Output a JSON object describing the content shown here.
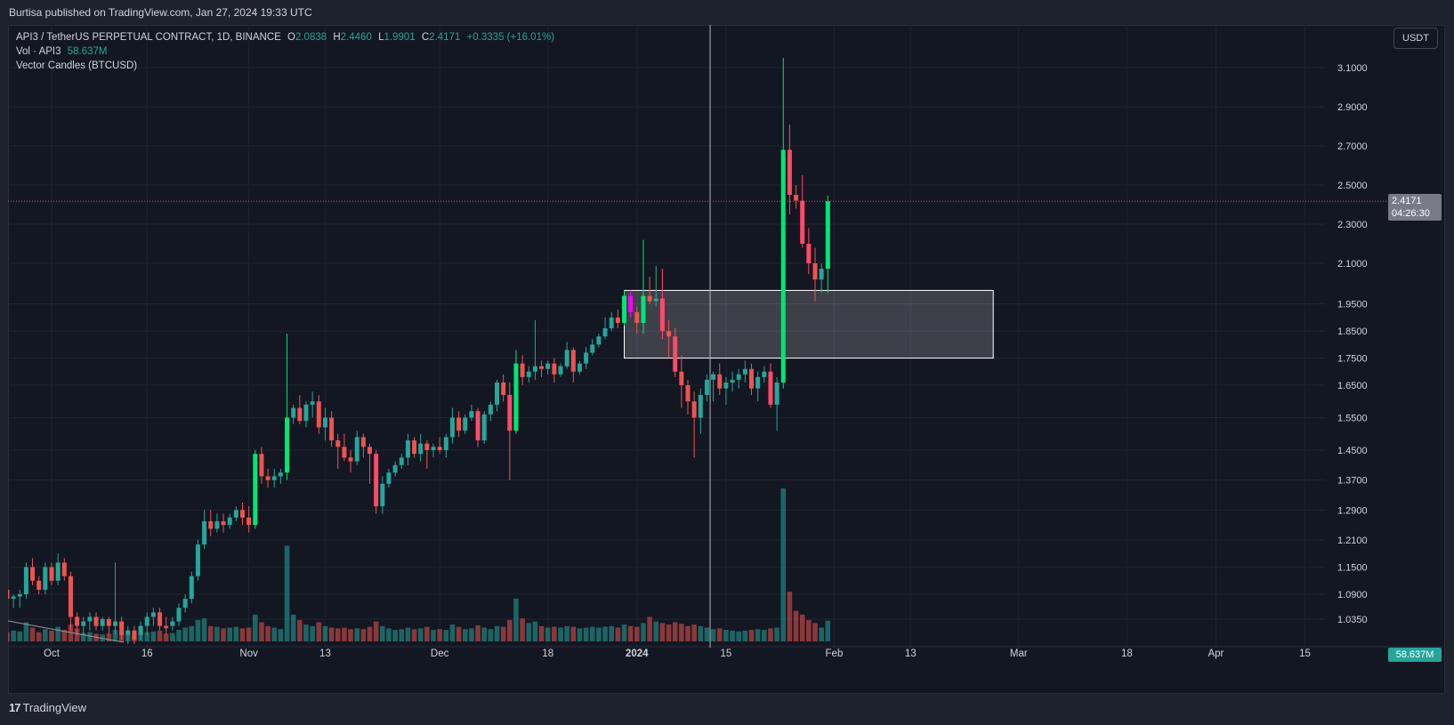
{
  "header": {
    "published": "Burtisa published on TradingView.com, Jan 27, 2024 19:33 UTC"
  },
  "legend": {
    "symbol": "API3 / TetherUS PERPETUAL CONTRACT, 1D, BINANCE",
    "o_label": "O",
    "o": "2.0838",
    "h_label": "H",
    "h": "2.4460",
    "l_label": "L",
    "l": "1.9901",
    "c_label": "C",
    "c": "2.4171",
    "change": "+0.3335 (+16.01%)",
    "vol_label": "Vol · API3",
    "vol": "58.637M",
    "indicator": "Vector Candles (BTCUSD)"
  },
  "currency_button": "USDT",
  "price_tag": {
    "price": "2.4171",
    "countdown": "04:26:30"
  },
  "volume_tag": "58.637M",
  "footer": {
    "brand": "TradingView",
    "logo_icon": "tradingview-logo-icon"
  },
  "chart_data": {
    "type": "candlestick",
    "title": "",
    "colors": {
      "up": "#26a69a",
      "down": "#ef5350",
      "vector_up": "#00e676",
      "vector_down": "#ff4a68",
      "vector_magenta": "#ff00ff",
      "background": "#131722"
    },
    "y_ticks": [
      "3.1000",
      "2.9000",
      "2.7000",
      "2.5000",
      "2.3000",
      "2.1000",
      "1.9500",
      "1.8500",
      "1.7500",
      "1.6500",
      "1.5500",
      "1.4500",
      "1.3700",
      "1.2900",
      "1.2100",
      "1.1500",
      "1.0900",
      "1.0350"
    ],
    "x_ticks": [
      {
        "label": "Oct",
        "day": 0
      },
      {
        "label": "16",
        "day": 15
      },
      {
        "label": "Nov",
        "day": 31
      },
      {
        "label": "13",
        "day": 43
      },
      {
        "label": "Dec",
        "day": 61
      },
      {
        "label": "18",
        "day": 78
      },
      {
        "label": "2024",
        "day": 92
      },
      {
        "label": "15",
        "day": 106
      },
      {
        "label": "Feb",
        "day": 123
      },
      {
        "label": "13",
        "day": 135
      },
      {
        "label": "Mar",
        "day": 152
      },
      {
        "label": "18",
        "day": 169
      },
      {
        "label": "Apr",
        "day": 183
      },
      {
        "label": "15",
        "day": 197
      }
    ],
    "highlight_zone": {
      "x_start_day": 90,
      "x_end_day": 148,
      "y_low": 1.75,
      "y_high": 2.0
    },
    "vertical_marker_day": 103.5,
    "current_price": 2.4171,
    "candles_start_day": -7,
    "candles": [
      [
        1.1,
        1.11,
        1.07,
        1.08,
        1.2
      ],
      [
        1.08,
        1.09,
        1.06,
        1.085,
        1.4
      ],
      [
        1.085,
        1.1,
        1.06,
        1.09,
        1.3
      ],
      [
        1.09,
        1.16,
        1.08,
        1.15,
        2.5
      ],
      [
        1.15,
        1.17,
        1.11,
        1.12,
        1.8
      ],
      [
        1.12,
        1.13,
        1.09,
        1.1,
        1.2
      ],
      [
        1.1,
        1.16,
        1.09,
        1.15,
        1.6
      ],
      [
        1.15,
        1.16,
        1.11,
        1.12,
        1.4
      ],
      [
        1.12,
        1.18,
        1.11,
        1.16,
        1.9
      ],
      [
        1.16,
        1.17,
        1.12,
        1.13,
        1.5
      ],
      [
        1.13,
        1.14,
        1.01,
        1.04,
        2.2
      ],
      [
        1.04,
        1.05,
        1.0,
        1.02,
        1.7
      ],
      [
        1.02,
        1.04,
        1.0,
        1.03,
        1.1
      ],
      [
        1.03,
        1.05,
        1.01,
        1.04,
        1.2
      ],
      [
        1.04,
        1.05,
        1.01,
        1.02,
        1.0
      ],
      [
        1.02,
        1.04,
        1.01,
        1.035,
        0.9
      ],
      [
        1.035,
        1.04,
        1.0,
        1.02,
        1.0
      ],
      [
        1.02,
        1.16,
        1.0,
        1.03,
        1.5
      ],
      [
        1.03,
        1.04,
        0.99,
        1.0,
        1.1
      ],
      [
        1.0,
        1.02,
        0.98,
        1.01,
        0.9
      ],
      [
        1.01,
        1.02,
        0.98,
        0.99,
        1.0
      ],
      [
        1.0,
        1.03,
        0.99,
        1.02,
        1.1
      ],
      [
        1.02,
        1.05,
        1.0,
        1.04,
        1.2
      ],
      [
        1.04,
        1.06,
        1.02,
        1.05,
        1.3
      ],
      [
        1.05,
        1.06,
        1.01,
        1.02,
        1.4
      ],
      [
        1.02,
        1.04,
        1.0,
        1.015,
        1.0
      ],
      [
        1.02,
        1.04,
        1.01,
        1.03,
        1.1
      ],
      [
        1.03,
        1.07,
        1.02,
        1.06,
        1.5
      ],
      [
        1.06,
        1.09,
        1.05,
        1.08,
        1.8
      ],
      [
        1.08,
        1.14,
        1.07,
        1.13,
        2.0
      ],
      [
        1.13,
        1.21,
        1.12,
        1.2,
        2.8
      ],
      [
        1.2,
        1.29,
        1.19,
        1.26,
        3.0
      ],
      [
        1.26,
        1.29,
        1.22,
        1.24,
        2.0
      ],
      [
        1.24,
        1.28,
        1.23,
        1.26,
        1.9
      ],
      [
        1.26,
        1.28,
        1.23,
        1.25,
        1.7
      ],
      [
        1.25,
        1.28,
        1.24,
        1.27,
        1.8
      ],
      [
        1.27,
        1.3,
        1.26,
        1.29,
        1.9
      ],
      [
        1.29,
        1.31,
        1.25,
        1.27,
        1.7
      ],
      [
        1.27,
        1.3,
        1.23,
        1.25,
        1.8
      ],
      [
        1.25,
        1.45,
        1.24,
        1.44,
        3.5
      ],
      [
        1.44,
        1.46,
        1.36,
        1.38,
        2.5
      ],
      [
        1.38,
        1.4,
        1.35,
        1.37,
        2.0
      ],
      [
        1.37,
        1.4,
        1.35,
        1.38,
        1.8
      ],
      [
        1.38,
        1.4,
        1.36,
        1.39,
        1.6
      ],
      [
        1.39,
        1.84,
        1.37,
        1.55,
        12.5
      ],
      [
        1.55,
        1.59,
        1.53,
        1.58,
        3.5
      ],
      [
        1.58,
        1.62,
        1.53,
        1.54,
        2.8
      ],
      [
        1.54,
        1.6,
        1.52,
        1.59,
        2.2
      ],
      [
        1.59,
        1.63,
        1.55,
        1.6,
        2.0
      ],
      [
        1.6,
        1.62,
        1.5,
        1.52,
        2.5
      ],
      [
        1.52,
        1.58,
        1.48,
        1.55,
        2.0
      ],
      [
        1.55,
        1.57,
        1.46,
        1.48,
        1.8
      ],
      [
        1.48,
        1.5,
        1.4,
        1.46,
        1.7
      ],
      [
        1.46,
        1.5,
        1.42,
        1.43,
        1.8
      ],
      [
        1.43,
        1.45,
        1.39,
        1.42,
        1.6
      ],
      [
        1.42,
        1.51,
        1.41,
        1.49,
        1.7
      ],
      [
        1.49,
        1.5,
        1.43,
        1.46,
        1.6
      ],
      [
        1.46,
        1.47,
        1.36,
        1.44,
        1.9
      ],
      [
        1.44,
        1.45,
        1.28,
        1.3,
        2.6
      ],
      [
        1.3,
        1.38,
        1.28,
        1.36,
        2.0
      ],
      [
        1.36,
        1.4,
        1.35,
        1.39,
        1.7
      ],
      [
        1.39,
        1.42,
        1.38,
        1.41,
        1.5
      ],
      [
        1.41,
        1.44,
        1.4,
        1.43,
        1.6
      ],
      [
        1.43,
        1.5,
        1.41,
        1.48,
        1.8
      ],
      [
        1.48,
        1.49,
        1.43,
        1.44,
        1.6
      ],
      [
        1.44,
        1.5,
        1.42,
        1.47,
        1.7
      ],
      [
        1.47,
        1.48,
        1.4,
        1.45,
        1.9
      ],
      [
        1.45,
        1.47,
        1.43,
        1.46,
        1.5
      ],
      [
        1.46,
        1.49,
        1.44,
        1.45,
        1.6
      ],
      [
        1.45,
        1.5,
        1.43,
        1.49,
        1.5
      ],
      [
        1.49,
        1.58,
        1.47,
        1.55,
        2.2
      ],
      [
        1.55,
        1.57,
        1.49,
        1.51,
        1.9
      ],
      [
        1.51,
        1.56,
        1.5,
        1.55,
        1.6
      ],
      [
        1.55,
        1.59,
        1.54,
        1.57,
        1.7
      ],
      [
        1.57,
        1.58,
        1.46,
        1.48,
        2.1
      ],
      [
        1.48,
        1.57,
        1.47,
        1.56,
        1.8
      ],
      [
        1.56,
        1.6,
        1.54,
        1.59,
        1.6
      ],
      [
        1.59,
        1.67,
        1.57,
        1.66,
        2.0
      ],
      [
        1.66,
        1.69,
        1.6,
        1.62,
        1.9
      ],
      [
        1.62,
        1.66,
        1.37,
        1.51,
        2.8
      ],
      [
        1.51,
        1.78,
        1.5,
        1.73,
        5.6
      ],
      [
        1.73,
        1.76,
        1.65,
        1.68,
        3.0
      ],
      [
        1.68,
        1.72,
        1.66,
        1.7,
        2.4
      ],
      [
        1.7,
        1.89,
        1.67,
        1.72,
        2.6
      ],
      [
        1.72,
        1.74,
        1.68,
        1.71,
        2.0
      ],
      [
        1.71,
        1.74,
        1.69,
        1.73,
        1.8
      ],
      [
        1.73,
        1.75,
        1.66,
        1.69,
        1.9
      ],
      [
        1.69,
        1.73,
        1.68,
        1.72,
        1.8
      ],
      [
        1.72,
        1.81,
        1.71,
        1.78,
        2.0
      ],
      [
        1.78,
        1.79,
        1.66,
        1.7,
        1.9
      ],
      [
        1.7,
        1.74,
        1.69,
        1.73,
        1.7
      ],
      [
        1.73,
        1.79,
        1.71,
        1.77,
        1.8
      ],
      [
        1.77,
        1.82,
        1.76,
        1.8,
        1.9
      ],
      [
        1.8,
        1.84,
        1.79,
        1.83,
        1.8
      ],
      [
        1.83,
        1.9,
        1.82,
        1.86,
        1.9
      ],
      [
        1.86,
        1.92,
        1.85,
        1.9,
        2.0
      ],
      [
        1.9,
        1.93,
        1.86,
        1.88,
        1.8
      ],
      [
        1.88,
        2.0,
        1.87,
        1.98,
        2.2
      ],
      [
        1.98,
        2.0,
        1.9,
        1.92,
        2.0
      ],
      [
        1.92,
        1.94,
        1.84,
        1.88,
        1.9
      ],
      [
        1.88,
        2.22,
        1.84,
        1.98,
        2.4
      ],
      [
        1.98,
        2.05,
        1.95,
        1.96,
        3.2
      ],
      [
        1.96,
        2.09,
        1.94,
        1.97,
        2.6
      ],
      [
        1.97,
        2.08,
        1.82,
        1.85,
        2.4
      ],
      [
        1.85,
        1.89,
        1.75,
        1.83,
        2.2
      ],
      [
        1.83,
        1.86,
        1.68,
        1.7,
        2.5
      ],
      [
        1.7,
        1.76,
        1.58,
        1.65,
        2.3
      ],
      [
        1.65,
        1.67,
        1.56,
        1.6,
        2.0
      ],
      [
        1.6,
        1.63,
        1.43,
        1.55,
        2.2
      ],
      [
        1.55,
        1.64,
        1.5,
        1.62,
        2.0
      ],
      [
        1.62,
        1.69,
        1.6,
        1.67,
        1.8
      ],
      [
        1.67,
        1.7,
        1.6,
        1.69,
        1.6
      ],
      [
        1.69,
        1.73,
        1.62,
        1.64,
        1.7
      ],
      [
        1.64,
        1.68,
        1.59,
        1.66,
        1.5
      ],
      [
        1.66,
        1.7,
        1.63,
        1.67,
        1.4
      ],
      [
        1.67,
        1.71,
        1.64,
        1.69,
        1.3
      ],
      [
        1.69,
        1.74,
        1.66,
        1.71,
        1.4
      ],
      [
        1.71,
        1.73,
        1.62,
        1.64,
        1.5
      ],
      [
        1.64,
        1.7,
        1.6,
        1.68,
        1.6
      ],
      [
        1.68,
        1.72,
        1.66,
        1.7,
        1.5
      ],
      [
        1.7,
        1.73,
        1.58,
        1.59,
        1.7
      ],
      [
        1.59,
        1.68,
        1.51,
        1.66,
        1.8
      ],
      [
        1.66,
        3.15,
        1.64,
        2.68,
        20.0
      ],
      [
        2.68,
        2.81,
        2.35,
        2.45,
        6.5
      ],
      [
        2.45,
        2.5,
        2.38,
        2.42,
        4.0
      ],
      [
        2.42,
        2.55,
        2.18,
        2.2,
        3.5
      ],
      [
        2.2,
        2.28,
        2.06,
        2.1,
        2.8
      ],
      [
        2.1,
        2.18,
        1.96,
        2.04,
        2.4
      ],
      [
        2.04,
        2.1,
        1.99,
        2.08,
        1.8
      ],
      [
        2.08,
        2.446,
        1.99,
        2.4171,
        2.7
      ]
    ]
  }
}
